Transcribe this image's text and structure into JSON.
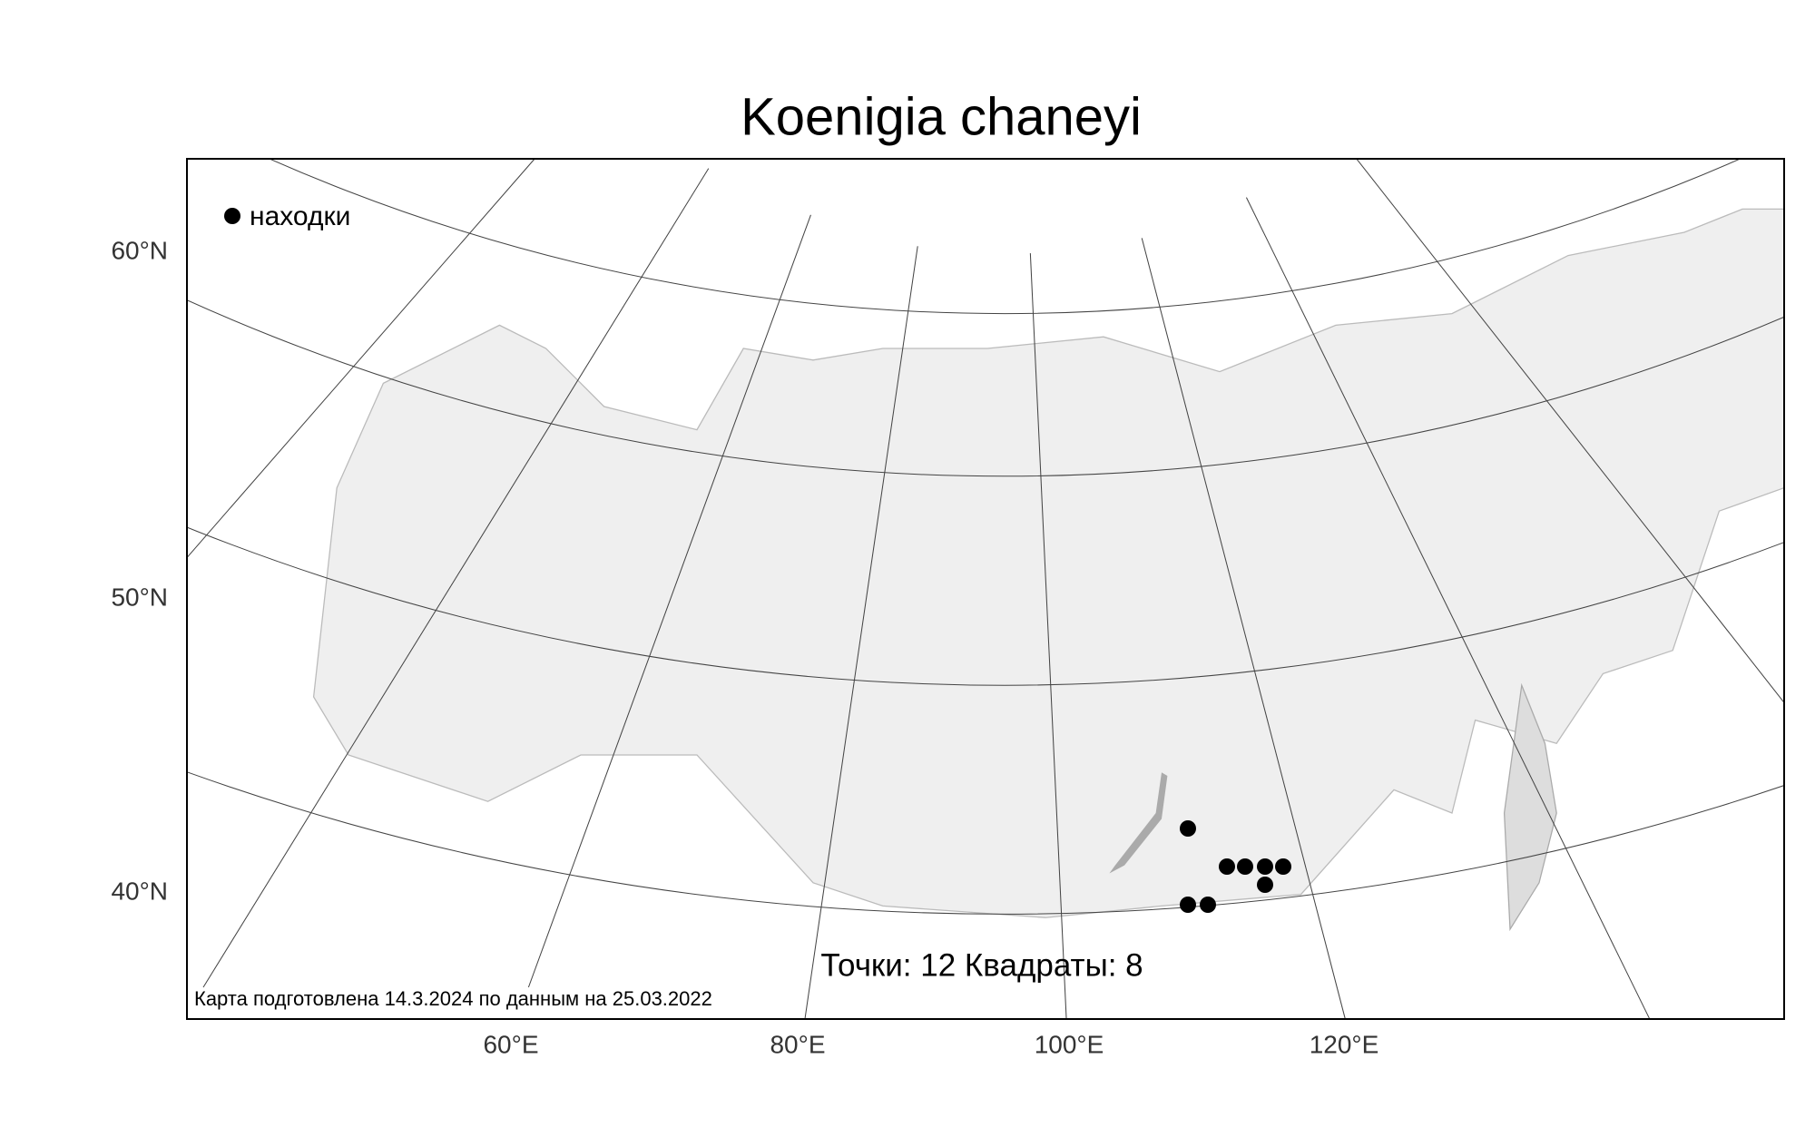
{
  "title": "Koenigia chaneyi",
  "legend": {
    "label": "находки"
  },
  "lat_labels": [
    "60°N",
    "50°N",
    "40°N"
  ],
  "lon_labels": [
    "60°E",
    "80°E",
    "100°E",
    "120°E"
  ],
  "stats": "Точки: 12 Квадраты: 8",
  "footnote": "Карта подготовлена 14.3.2024 по данным на 25.03.2022"
}
